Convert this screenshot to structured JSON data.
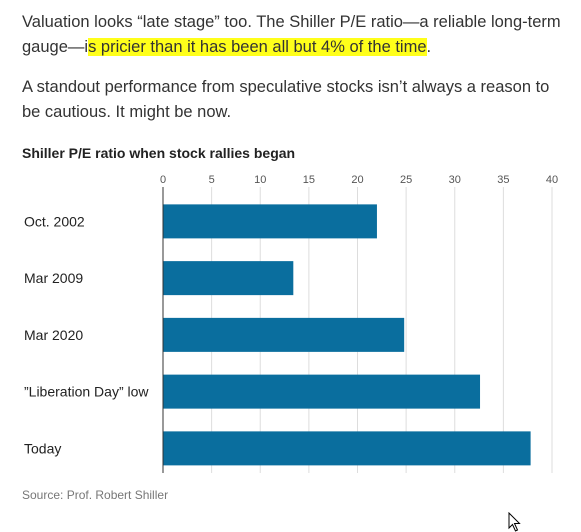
{
  "article": {
    "p1_before": "Valuation looks “late stage” too. The Shiller P/E ratio—a reliable long-term gauge—i",
    "p1_highlight": "s pricier than it has been all but 4% of the time",
    "p1_after": ".",
    "p2": "A standout performance from speculative stocks isn’t always a reason to be cautious. It might be now."
  },
  "colors": {
    "bar": "#0a6e9e",
    "highlight": "#ffff1a",
    "grid": "#dddddd"
  },
  "chart_data": {
    "type": "bar",
    "orientation": "horizontal",
    "title": "Shiller P/E ratio when stock rallies began",
    "categories": [
      "Oct. 2002",
      "Mar 2009",
      "Mar 2020",
      "”Liberation Day” low",
      "Today"
    ],
    "values": [
      22,
      13.4,
      24.8,
      32.6,
      37.8
    ],
    "xlim": [
      0,
      40
    ],
    "xticks": [
      0,
      5,
      10,
      15,
      20,
      25,
      30,
      35,
      40
    ],
    "xlabel": "",
    "ylabel": "",
    "grid": true,
    "source": "Source: Prof. Robert Shiller"
  }
}
